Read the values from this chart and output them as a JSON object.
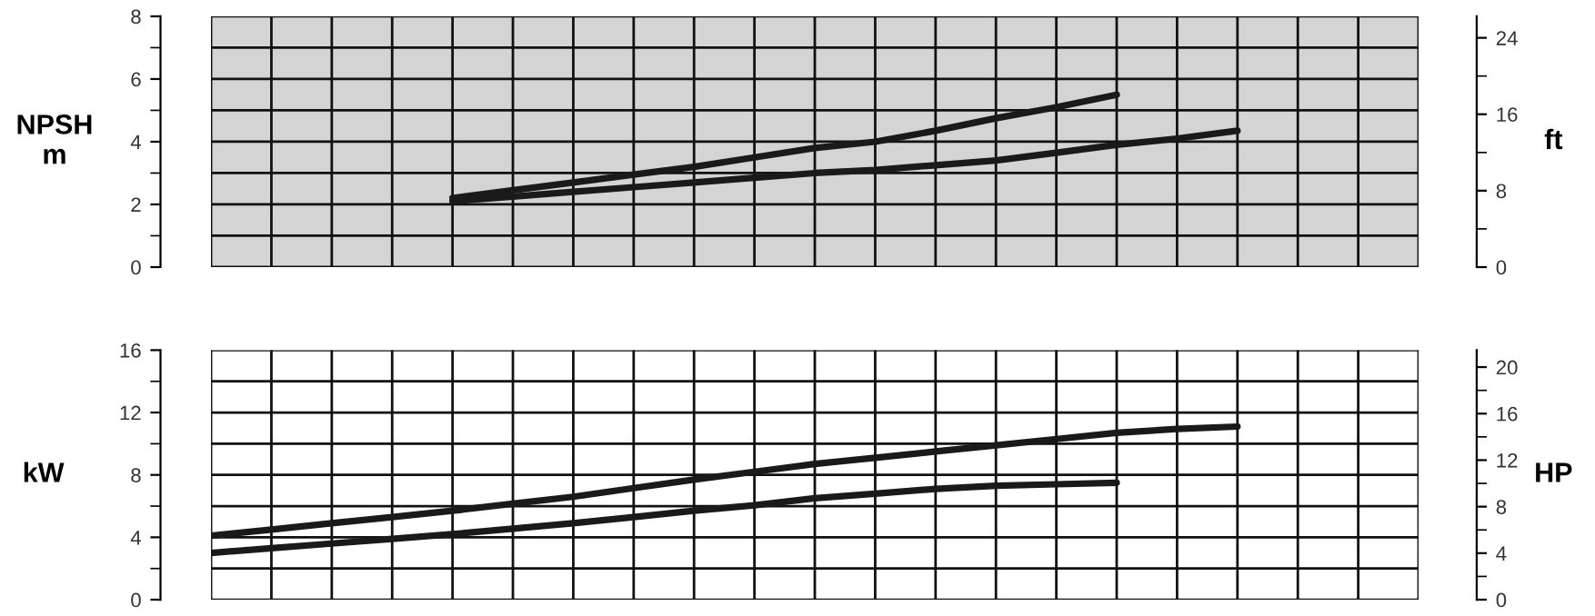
{
  "chart_data": [
    {
      "type": "line",
      "ylabel": "NPSH\nm",
      "y2label": "ft",
      "categories": [
        null,
        null,
        null,
        null,
        null,
        null,
        null,
        null,
        null,
        null,
        null,
        null,
        null,
        null,
        null,
        null,
        null,
        null,
        null,
        null,
        null
      ],
      "ylim": [
        0,
        8
      ],
      "yticks": [
        0,
        2,
        4,
        6,
        8
      ],
      "y2lim": [
        0,
        26.25
      ],
      "y2ticks": [
        0,
        8,
        16,
        24
      ],
      "tick_labels": "y",
      "grid": true,
      "legend": false,
      "marker": "none",
      "line_style": "solid",
      "series": [
        {
          "color": "#1a1a1a",
          "values": [
            null,
            null,
            null,
            null,
            2.2,
            2.45,
            2.7,
            2.95,
            3.2,
            3.5,
            3.8,
            4.0,
            4.35,
            4.75,
            5.1,
            5.5,
            null,
            null,
            null,
            null,
            null
          ]
        },
        {
          "color": "#1a1a1a",
          "values": [
            null,
            null,
            null,
            null,
            2.1,
            2.25,
            2.4,
            2.55,
            2.7,
            2.85,
            3.0,
            3.1,
            3.25,
            3.4,
            3.65,
            3.9,
            4.1,
            4.35,
            null,
            null,
            null
          ]
        }
      ]
    },
    {
      "type": "line",
      "ylabel": "kW",
      "y2label": "HP",
      "categories": [
        null,
        null,
        null,
        null,
        null,
        null,
        null,
        null,
        null,
        null,
        null,
        null,
        null,
        null,
        null,
        null,
        null,
        null,
        null,
        null,
        null
      ],
      "ylim": [
        0,
        16
      ],
      "yticks": [
        0,
        4,
        8,
        12,
        16
      ],
      "y2lim": [
        0,
        21.46
      ],
      "y2ticks": [
        0,
        4,
        8,
        12,
        16,
        20
      ],
      "tick_labels": "y",
      "grid": true,
      "legend": false,
      "marker": "none",
      "line_style": "solid",
      "series": [
        {
          "color": "#1a1a1a",
          "values": [
            4.1,
            4.5,
            4.9,
            5.3,
            5.7,
            6.15,
            6.6,
            7.15,
            7.7,
            8.2,
            8.7,
            9.1,
            9.5,
            9.9,
            10.3,
            10.7,
            10.95,
            11.1,
            null,
            null,
            null
          ]
        },
        {
          "color": "#1a1a1a",
          "values": [
            3.0,
            3.3,
            3.6,
            3.9,
            4.2,
            4.55,
            4.9,
            5.3,
            5.7,
            6.05,
            6.5,
            6.8,
            7.1,
            7.3,
            7.4,
            7.5,
            null,
            null,
            null,
            null,
            null
          ]
        }
      ]
    }
  ]
}
